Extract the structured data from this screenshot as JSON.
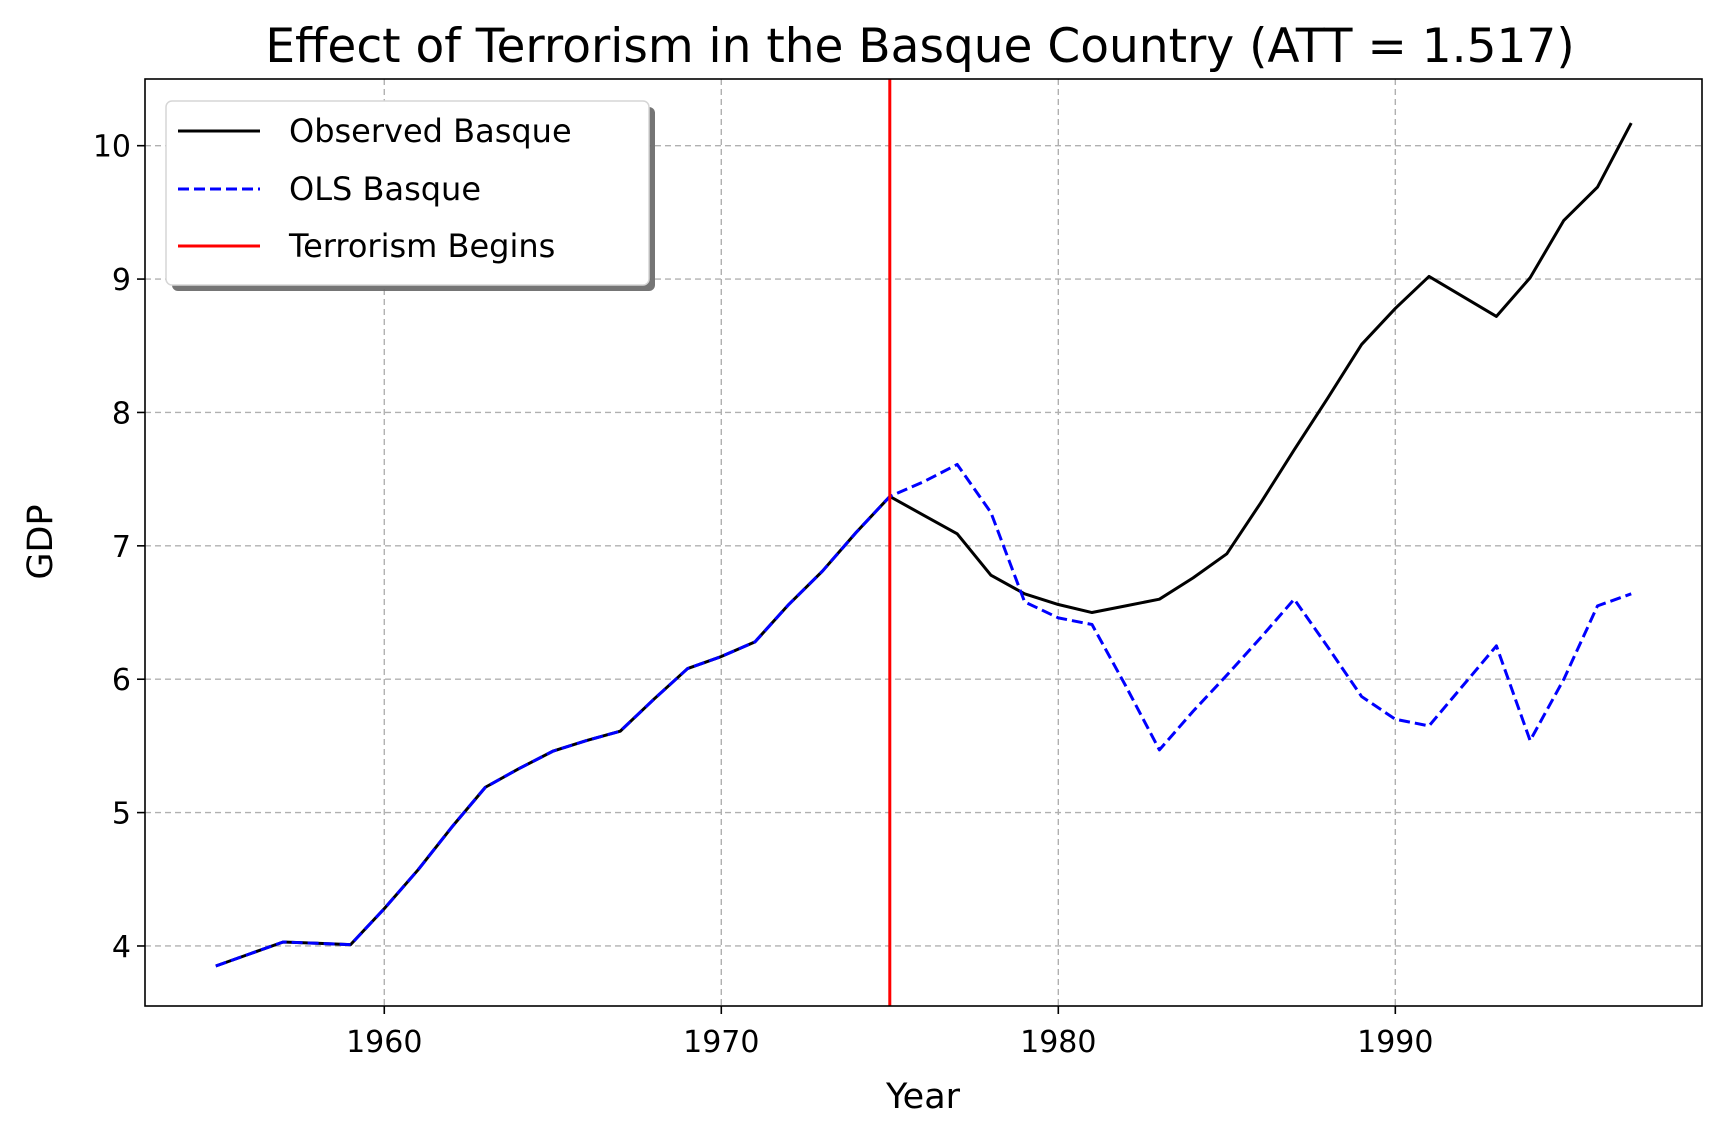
{
  "chart_data": {
    "type": "line",
    "title": "Effect of Terrorism in the Basque Country (ATT = 1.517)",
    "xlabel": "Year",
    "ylabel": "GDP",
    "xlim": [
      1952.9,
      1999.1
    ],
    "ylim": [
      3.55,
      10.5
    ],
    "xticks": [
      1960,
      1970,
      1980,
      1990
    ],
    "yticks": [
      4,
      5,
      6,
      7,
      8,
      9,
      10
    ],
    "grid": true,
    "legend_position": "top-left",
    "x": [
      1955,
      1956,
      1957,
      1958,
      1959,
      1960,
      1961,
      1962,
      1963,
      1964,
      1965,
      1966,
      1967,
      1968,
      1969,
      1970,
      1971,
      1972,
      1973,
      1974,
      1975,
      1976,
      1977,
      1978,
      1979,
      1980,
      1981,
      1982,
      1983,
      1984,
      1985,
      1986,
      1987,
      1988,
      1989,
      1990,
      1991,
      1992,
      1993,
      1994,
      1995,
      1996,
      1997
    ],
    "series": [
      {
        "name": "Observed Basque",
        "color": "#000000",
        "style": "solid",
        "values": [
          3.85,
          3.94,
          4.03,
          4.02,
          4.01,
          4.28,
          4.57,
          4.89,
          5.19,
          5.33,
          5.46,
          5.54,
          5.61,
          5.85,
          6.08,
          6.17,
          6.28,
          6.56,
          6.81,
          7.1,
          7.37,
          7.23,
          7.09,
          6.78,
          6.64,
          6.56,
          6.5,
          6.55,
          6.6,
          6.76,
          6.94,
          7.32,
          7.72,
          8.11,
          8.51,
          8.78,
          9.02,
          8.87,
          8.72,
          9.01,
          9.44,
          9.69,
          10.17
        ]
      },
      {
        "name": "OLS Basque",
        "color": "#0000ff",
        "style": "dashed",
        "values": [
          3.85,
          3.94,
          4.03,
          4.02,
          4.01,
          4.28,
          4.57,
          4.89,
          5.19,
          5.33,
          5.46,
          5.54,
          5.61,
          5.85,
          6.08,
          6.17,
          6.28,
          6.56,
          6.81,
          7.1,
          7.37,
          7.48,
          7.61,
          7.25,
          6.58,
          6.46,
          6.41,
          5.95,
          5.47,
          5.76,
          6.03,
          6.31,
          6.6,
          6.24,
          5.87,
          5.7,
          5.65,
          5.95,
          6.25,
          5.54,
          6.0,
          6.55,
          6.64
        ]
      }
    ],
    "vlines": [
      {
        "name": "Terrorism Begins",
        "x": 1975,
        "color": "#ff0000"
      }
    ]
  }
}
